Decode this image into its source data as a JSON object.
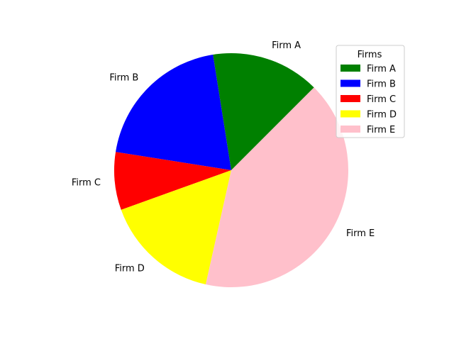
{
  "chart_data": {
    "type": "pie",
    "labels": [
      "Firm A",
      "Firm B",
      "Firm C",
      "Firm D",
      "Firm E"
    ],
    "values": [
      15,
      20,
      8,
      16,
      41
    ],
    "colors": [
      "#008000",
      "#0000ff",
      "#ff0000",
      "#ffff00",
      "#ffc0cb"
    ],
    "start_angle_deg": 45,
    "direction": "counterclockwise",
    "legend": {
      "title": "Firms",
      "placement": "upper-right",
      "entries": [
        "Firm A",
        "Firm B",
        "Firm C",
        "Firm D",
        "Firm E"
      ]
    }
  }
}
